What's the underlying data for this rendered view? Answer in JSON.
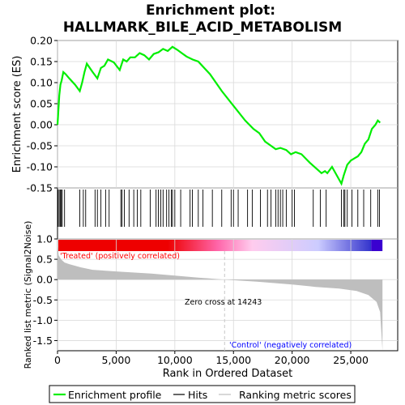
{
  "chart_data": {
    "type": "line",
    "title_line1": "Enrichment plot:",
    "title_line2": "HALLMARK_BILE_ACID_METABOLISM",
    "colors": {
      "es_line": "#00ee00",
      "hits": "#000000",
      "ranking_fill": "#bebebe",
      "zero_cross_line": "#c8c8c8",
      "treated_label": "#ff0000",
      "control_label": "#0000ff",
      "gradient": [
        "#ee0000",
        "#ff66aa",
        "#ffccee",
        "#ccccff",
        "#3333cc"
      ]
    },
    "es_panel": {
      "ylabel": "Enrichment score (ES)",
      "ylim": [
        -0.15,
        0.2
      ],
      "yticks": [
        -0.15,
        -0.1,
        -0.05,
        0.0,
        0.05,
        0.1,
        0.15,
        0.2
      ],
      "ytick_labels": [
        "-0.15",
        "-0.10",
        "-0.05",
        "0.00",
        "0.05",
        "0.10",
        "0.15",
        "0.20"
      ],
      "grid": true
    },
    "ranking_panel": {
      "ylabel": "Ranked list metric (Signal2Noise)",
      "ylim": [
        -1.75,
        1.0
      ],
      "yticks": [
        -1.5,
        -1.0,
        -0.5,
        0.0,
        0.5,
        1.0
      ],
      "ytick_labels": [
        "-1.5",
        "-1.0",
        "-0.5",
        "0.0",
        "0.5",
        "1.0"
      ],
      "grid": true,
      "zero_cross": 14243,
      "zero_cross_label": "Zero cross at 14243",
      "treated_label": "'Treated' (positively correlated)",
      "control_label": "'Control' (negatively correlated)",
      "metric_profile": [
        [
          0,
          0.95
        ],
        [
          100,
          0.6
        ],
        [
          300,
          0.5
        ],
        [
          600,
          0.42
        ],
        [
          1000,
          0.38
        ],
        [
          2000,
          0.3
        ],
        [
          3000,
          0.24
        ],
        [
          5000,
          0.2
        ],
        [
          8000,
          0.15
        ],
        [
          10000,
          0.1
        ],
        [
          12000,
          0.05
        ],
        [
          14243,
          0.0
        ],
        [
          17000,
          -0.05
        ],
        [
          20000,
          -0.12
        ],
        [
          22000,
          -0.18
        ],
        [
          24000,
          -0.22
        ],
        [
          25500,
          -0.28
        ],
        [
          26500,
          -0.38
        ],
        [
          27200,
          -0.55
        ],
        [
          27500,
          -0.8
        ],
        [
          27700,
          -1.75
        ]
      ]
    },
    "xaxis": {
      "xlabel": "Rank in Ordered Dataset",
      "xlim": [
        0,
        29000
      ],
      "xticks": [
        0,
        5000,
        10000,
        15000,
        20000,
        25000
      ],
      "xtick_labels": [
        "0",
        "5,000",
        "10,000",
        "15,000",
        "20,000",
        "25,000"
      ]
    },
    "series": [
      {
        "name": "Enrichment profile",
        "x": [
          0,
          150,
          250,
          350,
          500,
          700,
          1000,
          1500,
          1900,
          2100,
          2300,
          2500,
          3000,
          3400,
          3700,
          4000,
          4300,
          4800,
          5300,
          5600,
          5900,
          6200,
          6600,
          7000,
          7400,
          7800,
          8200,
          8600,
          9000,
          9400,
          9800,
          10200,
          10600,
          11000,
          11500,
          12000,
          13000,
          14000,
          15000,
          16000,
          16700,
          17200,
          17700,
          18200,
          18600,
          19000,
          19500,
          19900,
          20300,
          20800,
          21500,
          22100,
          22500,
          22800,
          23000,
          23400,
          23800,
          24200,
          24400,
          24700,
          25000,
          25300,
          25600,
          25900,
          26200,
          26500,
          26800,
          27100,
          27300,
          27500
        ],
        "y": [
          0.0,
          0.07,
          0.095,
          0.105,
          0.125,
          0.12,
          0.11,
          0.095,
          0.08,
          0.1,
          0.125,
          0.145,
          0.125,
          0.11,
          0.135,
          0.14,
          0.155,
          0.148,
          0.13,
          0.155,
          0.15,
          0.16,
          0.16,
          0.17,
          0.165,
          0.155,
          0.168,
          0.172,
          0.18,
          0.175,
          0.185,
          0.178,
          0.17,
          0.162,
          0.155,
          0.15,
          0.12,
          0.08,
          0.045,
          0.01,
          -0.01,
          -0.02,
          -0.04,
          -0.05,
          -0.058,
          -0.055,
          -0.06,
          -0.07,
          -0.065,
          -0.07,
          -0.09,
          -0.105,
          -0.115,
          -0.11,
          -0.115,
          -0.1,
          -0.12,
          -0.14,
          -0.12,
          -0.095,
          -0.085,
          -0.08,
          -0.075,
          -0.065,
          -0.045,
          -0.035,
          -0.01,
          0.0,
          0.01,
          0.005
        ]
      }
    ],
    "hits": [
      50,
      150,
      250,
      320,
      400,
      600,
      1900,
      2200,
      2400,
      3200,
      3400,
      3700,
      4100,
      4400,
      5400,
      5500,
      5700,
      6100,
      6500,
      6800,
      7100,
      7900,
      8400,
      8600,
      8800,
      9000,
      9300,
      9500,
      9700,
      9800,
      10000,
      10500,
      11300,
      11500,
      12000,
      12400,
      13200,
      14000,
      14800,
      15000,
      15400,
      16200,
      16600,
      17300,
      17900,
      18200,
      18600,
      18800,
      19000,
      19200,
      19500,
      20000,
      20200,
      21800,
      22400,
      22900,
      24200,
      24400,
      24500,
      24700,
      25100,
      25600,
      26100,
      26700,
      27300,
      27450
    ],
    "legend": {
      "items": [
        "Enrichment profile",
        "Hits",
        "Ranking metric scores"
      ],
      "placement": "bottom"
    }
  }
}
